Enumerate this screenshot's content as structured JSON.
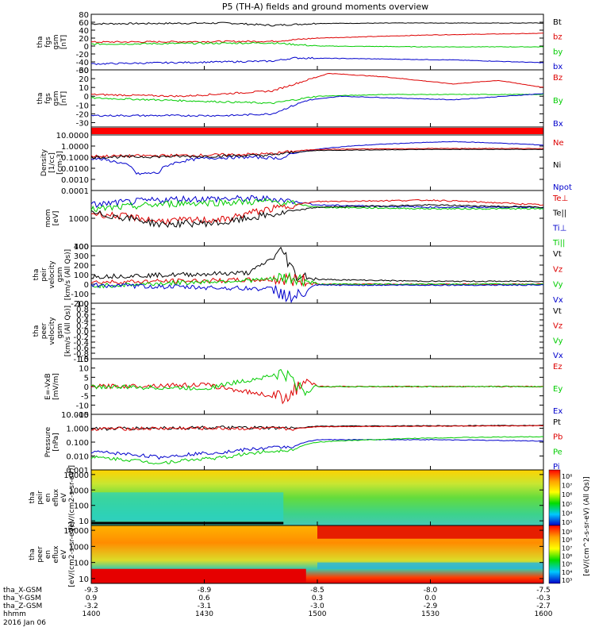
{
  "title": "P5 (TH-A) fields and ground moments overview",
  "chart_data": {
    "type": "line",
    "panels": [
      {
        "ylabel": [
          "tha",
          "fgs",
          "gsm",
          "[nT]"
        ],
        "yrange": [
          -60,
          80
        ],
        "ticks": [
          "80",
          "60",
          "40",
          "20",
          "0",
          "-20",
          "-40",
          "-60"
        ],
        "tickvals": [
          80,
          60,
          40,
          20,
          0,
          -20,
          -40,
          -60
        ],
        "legend": [
          {
            "label": "Bt",
            "color": "#000000"
          },
          {
            "label": "bz",
            "color": "#dd0000"
          },
          {
            "label": "by",
            "color": "#00cc00"
          },
          {
            "label": "bx",
            "color": "#0000cc"
          }
        ],
        "series": [
          {
            "color": "#000000",
            "x": [
              14.0,
              14.6,
              14.8,
              15.0,
              15.4,
              16.0
            ],
            "y": [
              56,
              58,
              52,
              57,
              58,
              58
            ]
          },
          {
            "color": "#dd0000",
            "x": [
              14.0,
              14.8,
              15.0,
              15.5,
              16.0
            ],
            "y": [
              10,
              12,
              20,
              28,
              32
            ]
          },
          {
            "color": "#00cc00",
            "x": [
              14.0,
              14.8,
              15.0,
              15.5,
              16.0
            ],
            "y": [
              5,
              8,
              0,
              -2,
              -2
            ]
          },
          {
            "color": "#0000cc",
            "x": [
              14.0,
              14.8,
              14.9,
              15.2,
              15.6,
              16.0
            ],
            "y": [
              -45,
              -38,
              -30,
              -32,
              -35,
              -42
            ]
          }
        ]
      },
      {
        "ylabel": [
          "tha",
          "fgs",
          "gsm",
          "[nT]"
        ],
        "yrange": [
          -35,
          30
        ],
        "ticks": [
          "30",
          "20",
          "10",
          "0",
          "-10",
          "-20",
          "-30"
        ],
        "tickvals": [
          30,
          20,
          10,
          0,
          -10,
          -20,
          -30
        ],
        "legend": [
          {
            "label": "Bz",
            "color": "#dd0000"
          },
          {
            "label": "By",
            "color": "#00cc00"
          },
          {
            "label": "Bx",
            "color": "#0000cc"
          }
        ],
        "series": [
          {
            "color": "#dd0000",
            "x": [
              14.0,
              14.4,
              14.8,
              14.95,
              15.05,
              15.3,
              15.6,
              15.8,
              16.0
            ],
            "y": [
              2,
              0,
              6,
              18,
              26,
              22,
              14,
              18,
              10
            ]
          },
          {
            "color": "#00cc00",
            "x": [
              14.0,
              14.4,
              14.8,
              15.0,
              15.3,
              16.0
            ],
            "y": [
              -2,
              -5,
              -8,
              0,
              2,
              2
            ]
          },
          {
            "color": "#0000cc",
            "x": [
              14.0,
              14.6,
              14.8,
              14.95,
              15.1,
              15.6,
              16.0
            ],
            "y": [
              -22,
              -22,
              -20,
              -5,
              0,
              -4,
              3
            ]
          }
        ]
      },
      {
        "flag": true,
        "flagcolor": "#ff0000"
      },
      {
        "ylabel": [
          "Density",
          "[1/cc]",
          "[cm-3]"
        ],
        "log": true,
        "yrange": [
          0.0001,
          10
        ],
        "ticks": [
          "10.0000",
          "1.0000",
          "0.1000",
          "0.0100",
          "0.0010",
          "0.0001"
        ],
        "tickvals": [
          10,
          1,
          0.1,
          0.01,
          0.001,
          0.0001
        ],
        "legend": [
          {
            "label": "Ne",
            "color": "#dd0000"
          },
          {
            "label": "Ni",
            "color": "#000000"
          },
          {
            "label": "Npot",
            "color": "#0000cc"
          }
        ],
        "series": [
          {
            "color": "#0000cc",
            "x": [
              14.0,
              14.2,
              14.3,
              14.5,
              14.7,
              14.85,
              15.0,
              15.3,
              15.6,
              16.0
            ],
            "y": [
              0.08,
              0.003,
              0.004,
              0.08,
              0.1,
              0.08,
              0.5,
              1.5,
              2.5,
              1.2
            ]
          },
          {
            "color": "#dd0000",
            "x": [
              14.0,
              14.5,
              14.8,
              15.0,
              15.5,
              16.0
            ],
            "y": [
              0.12,
              0.15,
              0.2,
              0.5,
              0.6,
              0.6
            ]
          },
          {
            "color": "#000000",
            "x": [
              14.0,
              14.5,
              14.8,
              15.0,
              15.5,
              16.0
            ],
            "y": [
              0.1,
              0.12,
              0.15,
              0.4,
              0.5,
              0.5
            ]
          }
        ]
      },
      {
        "ylabel": [
          "mom",
          "[eV]"
        ],
        "log": true,
        "yrange": [
          100,
          10000
        ],
        "ticks": [
          "1000",
          "100"
        ],
        "tickvals": [
          1000,
          100
        ],
        "legend": [
          {
            "label": "Te⊥",
            "color": "#dd0000"
          },
          {
            "label": "Te||",
            "color": "#000000"
          },
          {
            "label": "Ti⊥",
            "color": "#0000cc"
          },
          {
            "label": "Ti||",
            "color": "#00cc00"
          }
        ],
        "series": [
          {
            "color": "#0000cc",
            "x": [
              14.0,
              14.4,
              14.8,
              15.0,
              15.5,
              16.0
            ],
            "y": [
              3000,
              5000,
              5000,
              3000,
              2500,
              2500
            ]
          },
          {
            "color": "#00cc00",
            "x": [
              14.0,
              14.4,
              14.8,
              15.0,
              15.5,
              16.0
            ],
            "y": [
              2000,
              3500,
              4000,
              2500,
              2200,
              2200
            ]
          },
          {
            "color": "#dd0000",
            "x": [
              14.0,
              14.3,
              14.6,
              14.85,
              15.0,
              15.5,
              16.0
            ],
            "y": [
              1500,
              800,
              900,
              2500,
              4000,
              4500,
              3000
            ]
          },
          {
            "color": "#000000",
            "x": [
              14.0,
              14.3,
              14.6,
              14.85,
              15.0,
              15.5,
              16.0
            ],
            "y": [
              1500,
              600,
              700,
              1500,
              2500,
              3000,
              2500
            ]
          }
        ]
      },
      {
        "ylabel": [
          "tha",
          "peir",
          "velocity",
          "gsm",
          "[km/s (All Qs)]"
        ],
        "yrange": [
          -200,
          400
        ],
        "ticks": [
          "400",
          "300",
          "200",
          "100",
          "0",
          "-100",
          "-200"
        ],
        "tickvals": [
          400,
          300,
          200,
          100,
          0,
          -100,
          -200
        ],
        "legend": [
          {
            "label": "Vt",
            "color": "#000000"
          },
          {
            "label": "Vz",
            "color": "#dd0000"
          },
          {
            "label": "Vy",
            "color": "#00cc00"
          },
          {
            "label": "Vx",
            "color": "#0000cc"
          }
        ],
        "series": [
          {
            "color": "#000000",
            "x": [
              14.0,
              14.4,
              14.7,
              14.85,
              14.9,
              15.0,
              15.5,
              16.0
            ],
            "y": [
              80,
              100,
              120,
              350,
              100,
              50,
              30,
              30
            ]
          },
          {
            "color": "#dd0000",
            "x": [
              14.0,
              14.9,
              15.0,
              16.0
            ],
            "y": [
              20,
              50,
              0,
              0
            ]
          },
          {
            "color": "#00cc00",
            "x": [
              14.0,
              14.9,
              15.0,
              16.0
            ],
            "y": [
              -20,
              60,
              0,
              0
            ]
          },
          {
            "color": "#0000cc",
            "x": [
              14.0,
              14.8,
              14.9,
              15.0,
              16.0
            ],
            "y": [
              -10,
              -50,
              -150,
              -10,
              -10
            ]
          }
        ]
      },
      {
        "ylabel": [
          "tha",
          "peer",
          "velocity",
          "gsm",
          "[km/s (All Qs)]"
        ],
        "yrange": [
          -1,
          1
        ],
        "ticks": [
          "1.0",
          "0.8",
          "0.6",
          "0.4",
          "0.2",
          "0.0",
          "-0.2",
          "-0.4",
          "-0.6",
          "-0.8",
          "-1.0"
        ],
        "tickvals": [
          1,
          0.8,
          0.6,
          0.4,
          0.2,
          0,
          -0.2,
          -0.4,
          -0.6,
          -0.8,
          -1
        ],
        "legend": [
          {
            "label": "Vt",
            "color": "#000000"
          },
          {
            "label": "Vz",
            "color": "#dd0000"
          },
          {
            "label": "Vy",
            "color": "#00cc00"
          },
          {
            "label": "Vx",
            "color": "#0000cc"
          }
        ],
        "series": []
      },
      {
        "ylabel": [
          "E=-VxB",
          "[mV/m]"
        ],
        "yrange": [
          -15,
          15
        ],
        "ticks": [
          "15",
          "10",
          "5",
          "0",
          "-5",
          "-10",
          "-15"
        ],
        "tickvals": [
          15,
          10,
          5,
          0,
          -5,
          -10,
          -15
        ],
        "legend": [
          {
            "label": "Ez",
            "color": "#dd0000"
          },
          {
            "label": "Ey",
            "color": "#00cc00"
          },
          {
            "label": "Ex",
            "color": "#0000cc"
          }
        ],
        "series": [
          {
            "color": "#dd0000",
            "x": [
              14.0,
              14.5,
              14.85,
              14.95,
              15.0,
              16.0
            ],
            "y": [
              0,
              1,
              -6,
              3,
              0,
              0
            ]
          },
          {
            "color": "#00cc00",
            "x": [
              14.0,
              14.5,
              14.85,
              14.95,
              15.0,
              16.0
            ],
            "y": [
              0,
              -1,
              7,
              -3,
              0,
              0
            ]
          }
        ]
      },
      {
        "ylabel": [
          "Pressure",
          "[nPa]"
        ],
        "log": true,
        "yrange": [
          0.001,
          10
        ],
        "ticks": [
          "10.000",
          "1.000",
          "0.100",
          "0.010",
          "0.001"
        ],
        "tickvals": [
          10,
          1,
          0.1,
          0.01,
          0.001
        ],
        "legend": [
          {
            "label": "Pt",
            "color": "#000000"
          },
          {
            "label": "Pb",
            "color": "#dd0000"
          },
          {
            "label": "Pe",
            "color": "#00cc00"
          },
          {
            "label": "Pi",
            "color": "#0000cc"
          }
        ],
        "series": [
          {
            "color": "#000000",
            "x": [
              14.0,
              14.5,
              14.9,
              15.0,
              15.5,
              16.0
            ],
            "y": [
              0.9,
              1.1,
              1.0,
              1.4,
              1.5,
              1.6
            ]
          },
          {
            "color": "#dd0000",
            "x": [
              14.0,
              14.5,
              14.9,
              15.0,
              15.5,
              16.0
            ],
            "y": [
              0.9,
              1.0,
              0.9,
              1.3,
              1.4,
              1.5
            ]
          },
          {
            "color": "#0000cc",
            "x": [
              14.0,
              14.3,
              14.6,
              14.9,
              15.0,
              15.5,
              16.0
            ],
            "y": [
              0.02,
              0.008,
              0.02,
              0.05,
              0.15,
              0.15,
              0.12
            ]
          },
          {
            "color": "#00cc00",
            "x": [
              14.0,
              14.3,
              14.6,
              14.9,
              15.0,
              15.5,
              16.0
            ],
            "y": [
              0.008,
              0.003,
              0.008,
              0.03,
              0.1,
              0.2,
              0.25
            ]
          }
        ]
      },
      {
        "ylabel": [
          "tha",
          "peir",
          "en",
          "eflux",
          "eV",
          "[eV/(cm2-s-sr-eV)]"
        ],
        "spectrogram": true,
        "ticks": [
          "10000",
          "1000",
          "100",
          "10"
        ],
        "tickvals": [
          10000,
          1000,
          100,
          10
        ],
        "colorbar_ticks": [
          "10⁸",
          "10⁷",
          "10⁶",
          "10⁵",
          "10⁴",
          "10³"
        ]
      },
      {
        "ylabel": [
          "tha",
          "peer",
          "en",
          "eflux",
          "eV",
          "[eV/(cm2-s-sr-eV)]"
        ],
        "spectrogram": true,
        "ticks": [
          "10000",
          "1000",
          "100",
          "10"
        ],
        "tickvals": [
          10000,
          1000,
          100,
          10
        ],
        "colorbar_ticks": [
          "10⁹",
          "10⁸",
          "10⁷",
          "10⁶",
          "10⁵",
          "10⁴",
          "10³"
        ]
      }
    ],
    "colorbar_label": "[eV/(cm^2-s-sr-eV) (All Qs)]",
    "xaxis": {
      "rows": [
        {
          "label": "tha_X-GSM",
          "values": [
            "-9.3",
            "-8.9",
            "-8.5",
            "-8.0",
            "-7.5"
          ]
        },
        {
          "label": "tha_Y-GSM",
          "values": [
            "0.9",
            "0.6",
            "0.3",
            "0.0",
            "-0.3"
          ]
        },
        {
          "label": "tha_Z-GSM",
          "values": [
            "-3.2",
            "-3.1",
            "-3.0",
            "-2.9",
            "-2.7"
          ]
        },
        {
          "label": "hhmm",
          "values": [
            "1400",
            "1430",
            "1500",
            "1530",
            "1600"
          ]
        }
      ],
      "date": "2016 Jan 06"
    }
  }
}
